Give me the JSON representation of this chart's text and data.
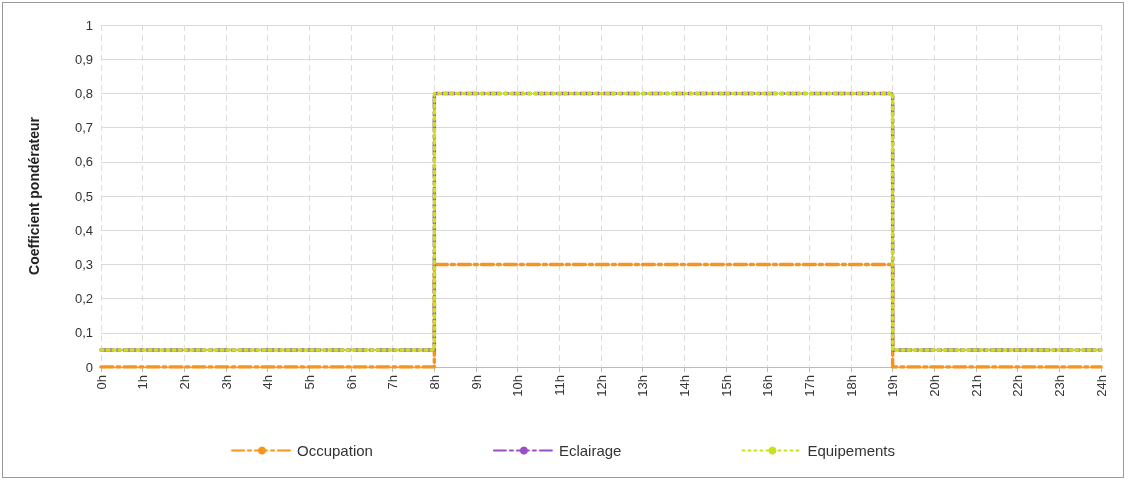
{
  "chart_data": {
    "type": "step",
    "ylabel": "Coefficient pondérateur",
    "x": [
      0,
      8,
      19,
      24
    ],
    "series": [
      {
        "name": "Occupation",
        "color": "#f7941d",
        "line_style": "dashed",
        "values": [
          0,
          0.3,
          0,
          0
        ]
      },
      {
        "name": "Eclairage",
        "color": "#9b4fc4",
        "line_style": "dashed",
        "values": [
          0.05,
          0.8,
          0.05,
          0.05
        ]
      },
      {
        "name": "Equipements",
        "color": "#c8e21e",
        "line_style": "dotted",
        "values": [
          0.05,
          0.8,
          0.05,
          0.05
        ]
      }
    ],
    "xlim": [
      0,
      24
    ],
    "xticks": [
      {
        "value": 0,
        "label": "0h"
      },
      {
        "value": 1,
        "label": "1h"
      },
      {
        "value": 2,
        "label": "2h"
      },
      {
        "value": 3,
        "label": "3h"
      },
      {
        "value": 4,
        "label": "4h"
      },
      {
        "value": 5,
        "label": "5h"
      },
      {
        "value": 6,
        "label": "6h"
      },
      {
        "value": 7,
        "label": "7h"
      },
      {
        "value": 8,
        "label": "8h"
      },
      {
        "value": 9,
        "label": "9h"
      },
      {
        "value": 10,
        "label": "10h"
      },
      {
        "value": 11,
        "label": "11h"
      },
      {
        "value": 12,
        "label": "12h"
      },
      {
        "value": 13,
        "label": "13h"
      },
      {
        "value": 14,
        "label": "14h"
      },
      {
        "value": 15,
        "label": "15h"
      },
      {
        "value": 16,
        "label": "16h"
      },
      {
        "value": 17,
        "label": "17h"
      },
      {
        "value": 18,
        "label": "18h"
      },
      {
        "value": 19,
        "label": "19h"
      },
      {
        "value": 20,
        "label": "20h"
      },
      {
        "value": 21,
        "label": "21h"
      },
      {
        "value": 22,
        "label": "22h"
      },
      {
        "value": 23,
        "label": "23h"
      },
      {
        "value": 24,
        "label": "24h"
      }
    ],
    "ylim": [
      0,
      1
    ],
    "yticks": [
      0,
      {
        "value": 0.1,
        "label": "0,1"
      },
      {
        "value": 0.2,
        "label": "0,2"
      },
      {
        "value": 0.3,
        "label": "0,3"
      },
      {
        "value": 0.4,
        "label": "0,4"
      },
      {
        "value": 0.5,
        "label": "0,5"
      },
      {
        "value": 0.6,
        "label": "0,6"
      },
      {
        "value": 0.7,
        "label": "0,7"
      },
      {
        "value": 0.8,
        "label": "0,8"
      },
      {
        "value": 0.9,
        "label": "0,9"
      },
      1
    ],
    "grid": true,
    "legend": "bottom"
  }
}
